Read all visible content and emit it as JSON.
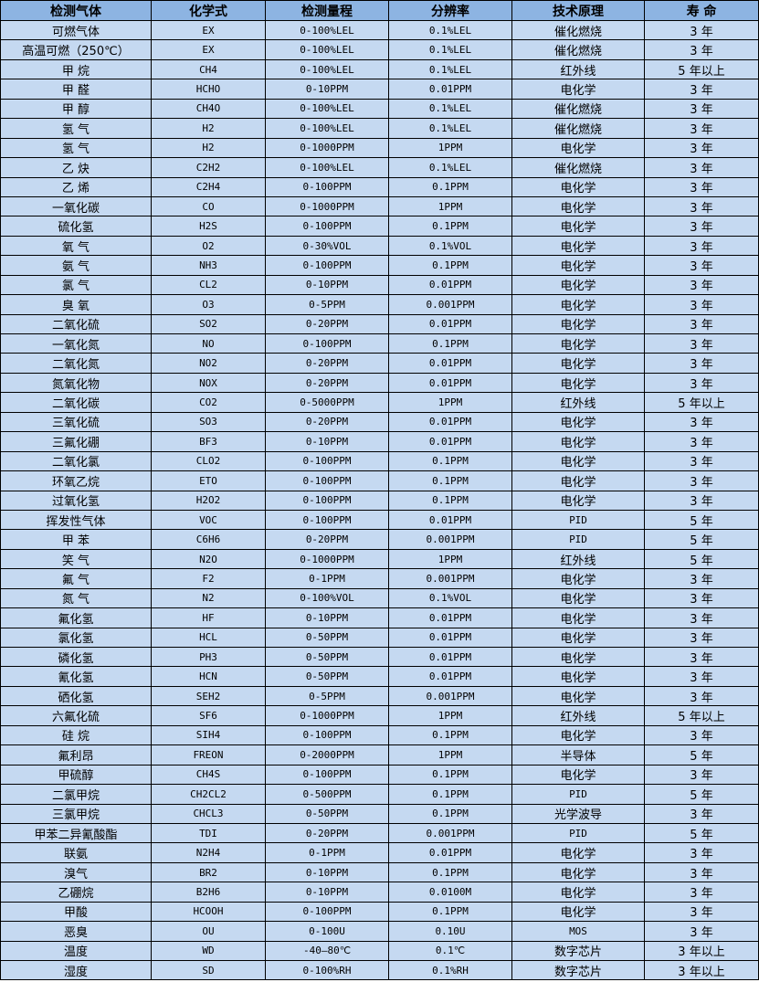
{
  "header": [
    "检测气体",
    "化学式",
    "检测量程",
    "分辨率",
    "技术原理",
    "寿 命"
  ],
  "colors": {
    "header_bg": "#8db4e2",
    "row_bg": "#c5d9f1",
    "border": "#000000"
  },
  "rows": [
    [
      "可燃气体",
      "EX",
      "0-100%LEL",
      "0.1%LEL",
      "催化燃烧",
      "3 年"
    ],
    [
      "高温可燃（250℃）",
      "EX",
      "0-100%LEL",
      "0.1%LEL",
      "催化燃烧",
      "3 年"
    ],
    [
      "甲 烷",
      "CH4",
      "0-100%LEL",
      "0.1%LEL",
      "红外线",
      "5 年以上"
    ],
    [
      "甲 醛",
      "HCHO",
      "0-10PPM",
      "0.01PPM",
      "电化学",
      "3 年"
    ],
    [
      "甲 醇",
      "CH4O",
      "0-100%LEL",
      "0.1%LEL",
      "催化燃烧",
      "3 年"
    ],
    [
      "氢 气",
      "H2",
      "0-100%LEL",
      "0.1%LEL",
      "催化燃烧",
      "3 年"
    ],
    [
      "氢 气",
      "H2",
      "0-1000PPM",
      "1PPM",
      "电化学",
      "3 年"
    ],
    [
      "乙 炔",
      "C2H2",
      "0-100%LEL",
      "0.1%LEL",
      "催化燃烧",
      "3 年"
    ],
    [
      "乙 烯",
      "C2H4",
      "0-100PPM",
      "0.1PPM",
      "电化学",
      "3 年"
    ],
    [
      "一氧化碳",
      "CO",
      "0-1000PPM",
      "1PPM",
      "电化学",
      "3 年"
    ],
    [
      "硫化氢",
      "H2S",
      "0-100PPM",
      "0.1PPM",
      "电化学",
      "3 年"
    ],
    [
      "氧 气",
      "O2",
      "0-30%VOL",
      "0.1%VOL",
      "电化学",
      "3 年"
    ],
    [
      "氨 气",
      "NH3",
      "0-100PPM",
      "0.1PPM",
      "电化学",
      "3 年"
    ],
    [
      "氯 气",
      "CL2",
      "0-10PPM",
      "0.01PPM",
      "电化学",
      "3 年"
    ],
    [
      "臭 氧",
      "O3",
      "0-5PPM",
      "0.001PPM",
      "电化学",
      "3 年"
    ],
    [
      "二氧化硫",
      "SO2",
      "0-20PPM",
      "0.01PPM",
      "电化学",
      "3 年"
    ],
    [
      "一氧化氮",
      "NO",
      "0-100PPM",
      "0.1PPM",
      "电化学",
      "3 年"
    ],
    [
      "二氧化氮",
      "NO2",
      "0-20PPM",
      "0.01PPM",
      "电化学",
      "3 年"
    ],
    [
      "氮氧化物",
      "NOX",
      "0-20PPM",
      "0.01PPM",
      "电化学",
      "3 年"
    ],
    [
      "二氧化碳",
      "CO2",
      "0-5000PPM",
      "1PPM",
      "红外线",
      "5 年以上"
    ],
    [
      "三氧化硫",
      "SO3",
      "0-20PPM",
      "0.01PPM",
      "电化学",
      "3 年"
    ],
    [
      "三氟化硼",
      "BF3",
      "0-10PPM",
      "0.01PPM",
      "电化学",
      "3 年"
    ],
    [
      "二氧化氯",
      "CLO2",
      "0-100PPM",
      "0.1PPM",
      "电化学",
      "3 年"
    ],
    [
      "环氧乙烷",
      "ETO",
      "0-100PPM",
      "0.1PPM",
      "电化学",
      "3 年"
    ],
    [
      "过氧化氢",
      "H2O2",
      "0-100PPM",
      "0.1PPM",
      "电化学",
      "3 年"
    ],
    [
      "挥发性气体",
      "VOC",
      "0-100PPM",
      "0.01PPM",
      "PID",
      "5 年"
    ],
    [
      "甲 苯",
      "C6H6",
      "0-20PPM",
      "0.001PPM",
      "PID",
      "5 年"
    ],
    [
      "笑 气",
      "N2O",
      "0-1000PPM",
      "1PPM",
      "红外线",
      "5 年"
    ],
    [
      "氟 气",
      "F2",
      "0-1PPM",
      "0.001PPM",
      "电化学",
      "3 年"
    ],
    [
      "氮 气",
      "N2",
      "0-100%VOL",
      "0.1%VOL",
      "电化学",
      "3 年"
    ],
    [
      "氟化氢",
      "HF",
      "0-10PPM",
      "0.01PPM",
      "电化学",
      "3 年"
    ],
    [
      "氯化氢",
      "HCL",
      "0-50PPM",
      "0.01PPM",
      "电化学",
      "3 年"
    ],
    [
      "磷化氢",
      "PH3",
      "0-50PPM",
      "0.01PPM",
      "电化学",
      "3 年"
    ],
    [
      "氰化氢",
      "HCN",
      "0-50PPM",
      "0.01PPM",
      "电化学",
      "3 年"
    ],
    [
      "硒化氢",
      "SEH2",
      "0-5PPM",
      "0.001PPM",
      "电化学",
      "3 年"
    ],
    [
      "六氟化硫",
      "SF6",
      "0-1000PPM",
      "1PPM",
      "红外线",
      "5 年以上"
    ],
    [
      "硅 烷",
      "SIH4",
      "0-100PPM",
      "0.1PPM",
      "电化学",
      "3 年"
    ],
    [
      "氟利昂",
      "FREON",
      "0-2000PPM",
      "1PPM",
      "半导体",
      "5 年"
    ],
    [
      "甲硫醇",
      "CH4S",
      "0-100PPM",
      "0.1PPM",
      "电化学",
      "3 年"
    ],
    [
      "二氯甲烷",
      "CH2CL2",
      "0-500PPM",
      "0.1PPM",
      "PID",
      "5 年"
    ],
    [
      "三氯甲烷",
      "CHCL3",
      "0-50PPM",
      "0.1PPM",
      "光学波导",
      "3 年"
    ],
    [
      "甲苯二异氰酸酯",
      "TDI",
      "0-20PPM",
      "0.001PPM",
      "PID",
      "5 年"
    ],
    [
      "联氨",
      "N2H4",
      "0-1PPM",
      "0.01PPM",
      "电化学",
      "3 年"
    ],
    [
      "溴气",
      "BR2",
      "0-10PPM",
      "0.1PPM",
      "电化学",
      "3 年"
    ],
    [
      "乙硼烷",
      "B2H6",
      "0-10PPM",
      "0.0100M",
      "电化学",
      "3 年"
    ],
    [
      "甲酸",
      "HCOOH",
      "0-100PPM",
      "0.1PPM",
      "电化学",
      "3 年"
    ],
    [
      "恶臭",
      "OU",
      "0-100U",
      "0.10U",
      "MOS",
      "3 年"
    ],
    [
      "温度",
      "WD",
      "-40—80℃",
      "0.1℃",
      "数字芯片",
      "3 年以上"
    ],
    [
      "湿度",
      "SD",
      "0-100%RH",
      "0.1%RH",
      "数字芯片",
      "3 年以上"
    ]
  ]
}
